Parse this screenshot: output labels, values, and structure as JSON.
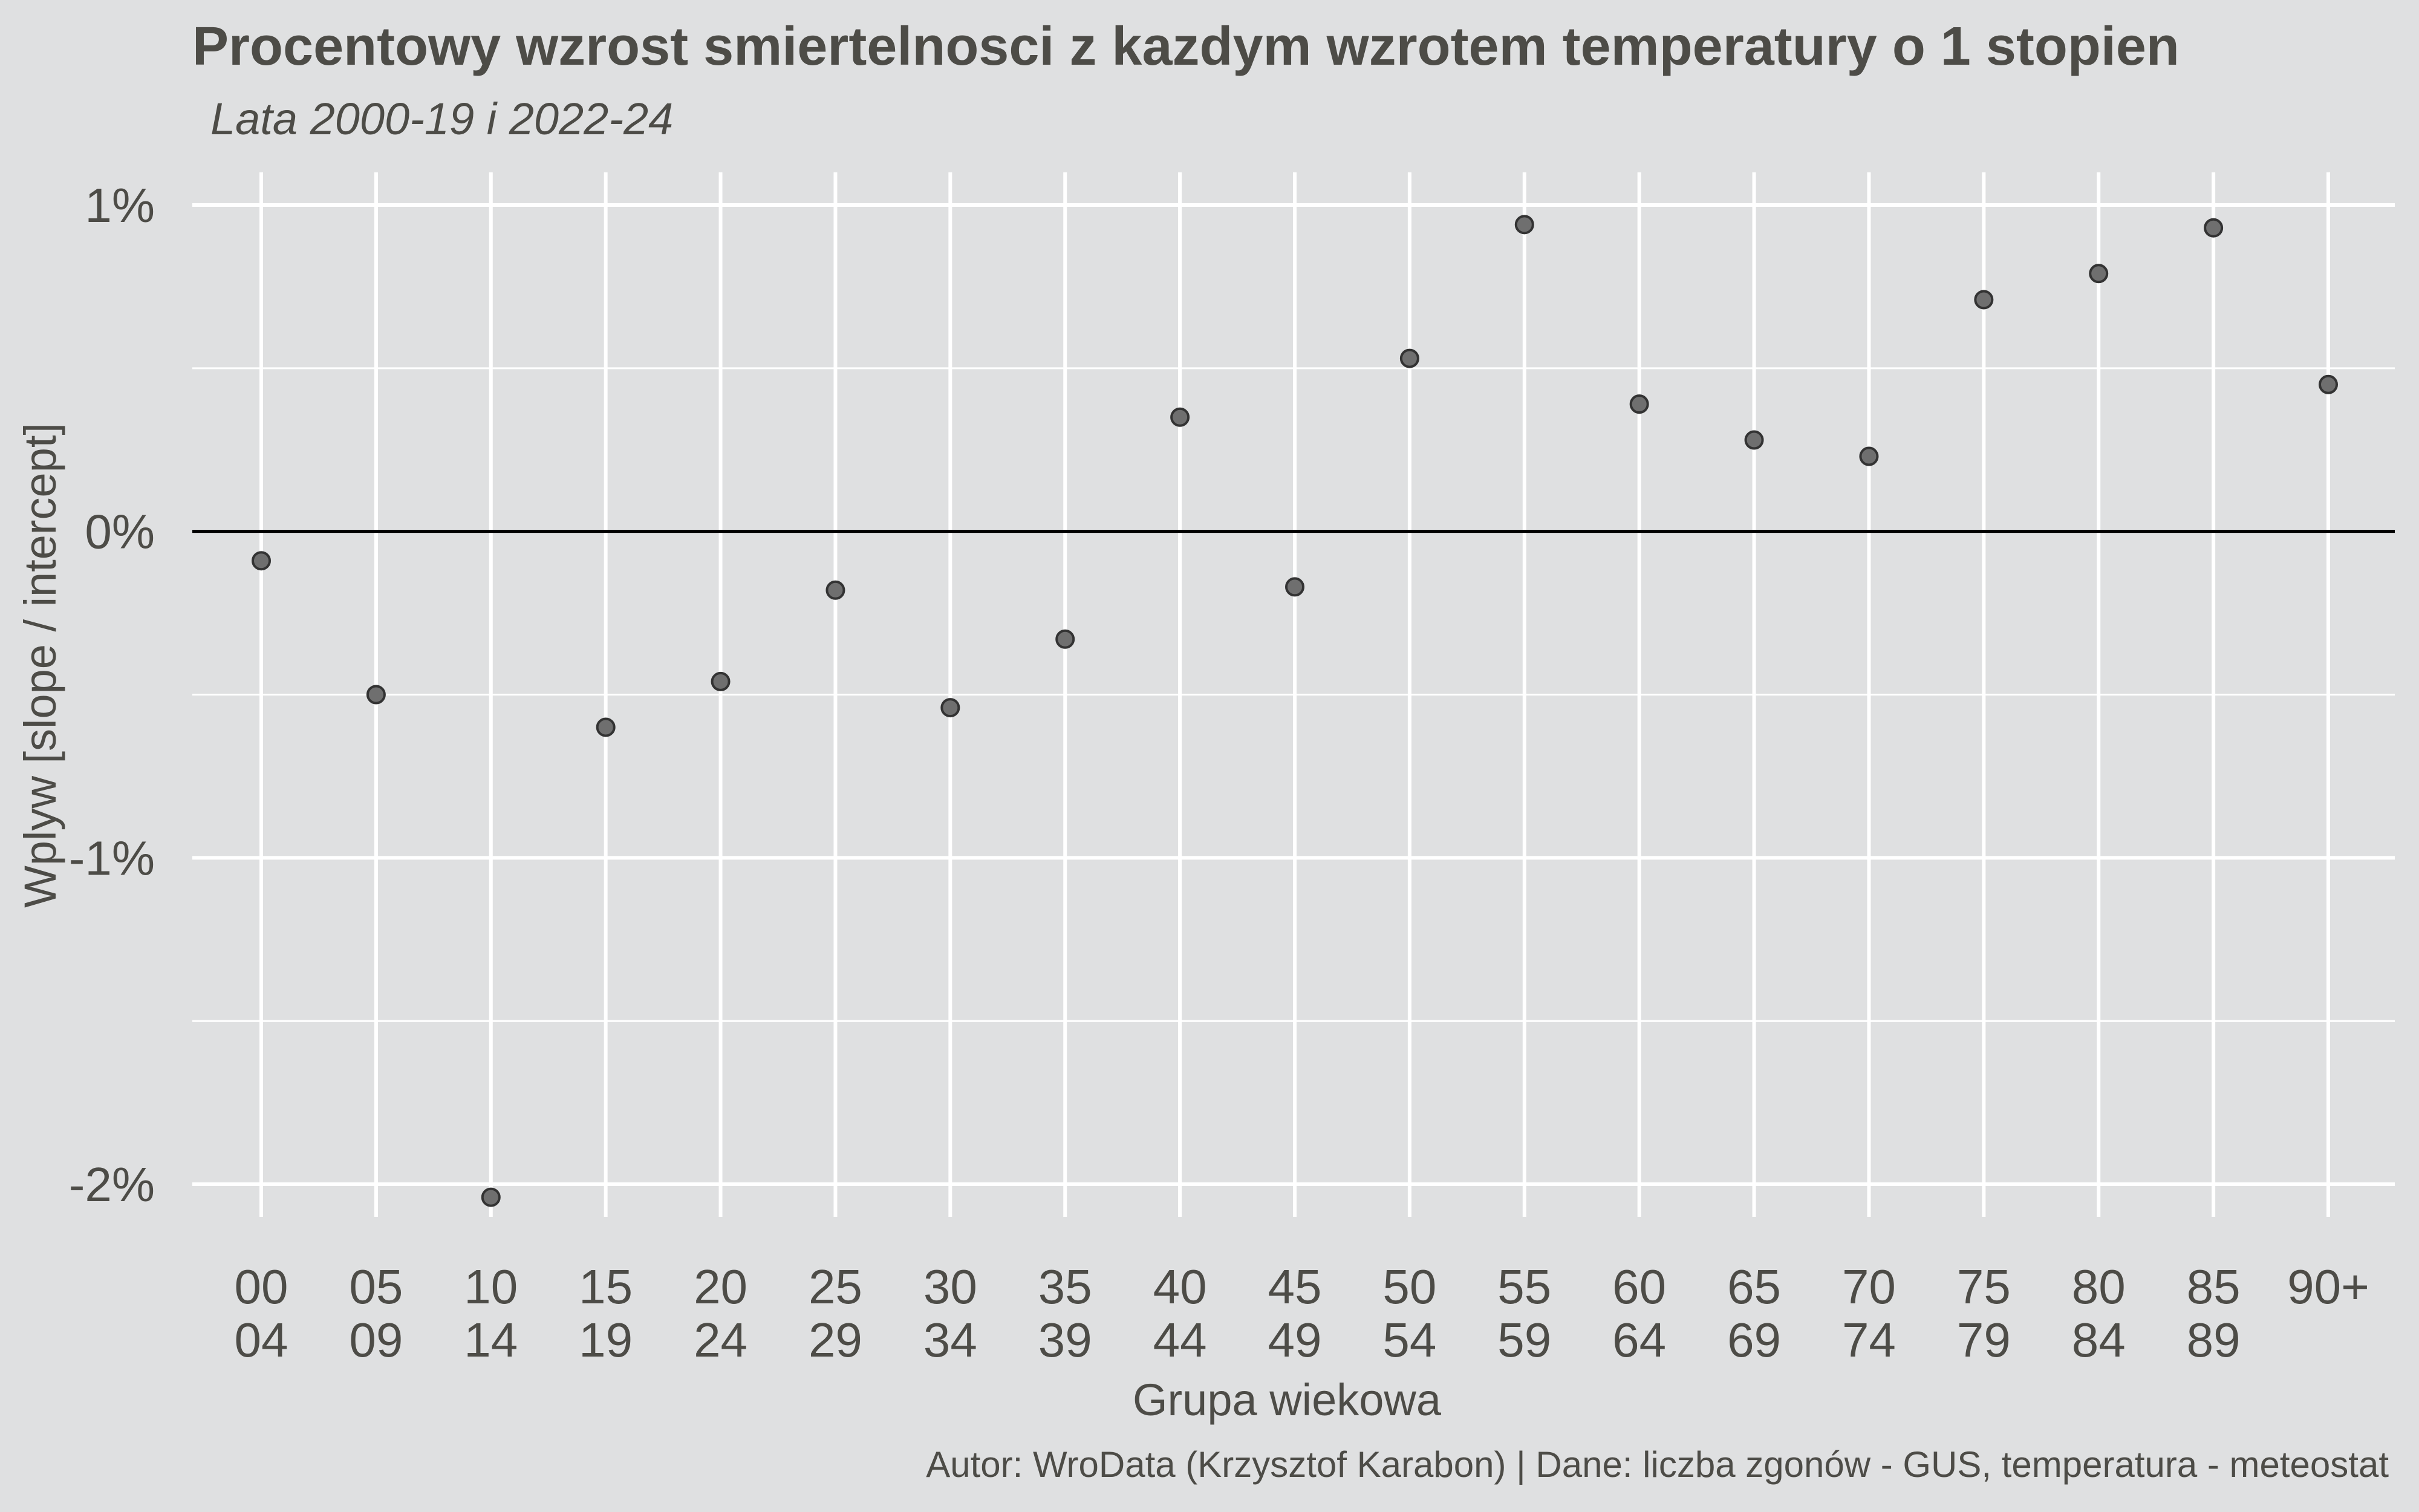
{
  "chart_data": {
    "type": "scatter",
    "title": "Procentowy wzrost smiertelnosci z kazdym wzrotem temperatury o 1 stopien",
    "subtitle": "Lata 2000-19 i 2022-24",
    "xlabel": "Grupa wiekowa",
    "ylabel": "Wplyw [slope / intercept]",
    "caption": "Autor: WroData (Krzysztof Karabon) | Dane: liczba zgonów - GUS, temperatura - meteostat",
    "categories": [
      {
        "line1": "00",
        "line2": "04"
      },
      {
        "line1": "05",
        "line2": "09"
      },
      {
        "line1": "10",
        "line2": "14"
      },
      {
        "line1": "15",
        "line2": "19"
      },
      {
        "line1": "20",
        "line2": "24"
      },
      {
        "line1": "25",
        "line2": "29"
      },
      {
        "line1": "30",
        "line2": "34"
      },
      {
        "line1": "35",
        "line2": "39"
      },
      {
        "line1": "40",
        "line2": "44"
      },
      {
        "line1": "45",
        "line2": "49"
      },
      {
        "line1": "50",
        "line2": "54"
      },
      {
        "line1": "55",
        "line2": "59"
      },
      {
        "line1": "60",
        "line2": "64"
      },
      {
        "line1": "65",
        "line2": "69"
      },
      {
        "line1": "70",
        "line2": "74"
      },
      {
        "line1": "75",
        "line2": "79"
      },
      {
        "line1": "80",
        "line2": "84"
      },
      {
        "line1": "85",
        "line2": "89"
      },
      {
        "line1": "90+",
        "line2": ""
      }
    ],
    "values": [
      -0.09,
      -0.5,
      -2.04,
      -0.6,
      -0.46,
      -0.18,
      -0.54,
      -0.33,
      0.35,
      -0.17,
      0.53,
      0.94,
      0.39,
      0.28,
      0.23,
      0.71,
      0.79,
      0.93,
      0.45
    ],
    "ylim": [
      -2.1,
      1.1
    ],
    "y_ticks": [
      {
        "value": 1,
        "label": "1%"
      },
      {
        "value": 0,
        "label": "0%"
      },
      {
        "value": -1,
        "label": "-1%"
      },
      {
        "value": -2,
        "label": "-2%"
      }
    ],
    "y_minor_ticks": [
      0.5,
      -0.5,
      -1.5
    ],
    "reference_line": 0,
    "grid": true,
    "legend": "none",
    "colors": {
      "background": "#dfe0e1",
      "grid": "#ffffff",
      "point_fill": "#6f6f6f",
      "point_stroke": "#333333",
      "zero_line": "#000000",
      "text": "#4d4c47"
    }
  }
}
